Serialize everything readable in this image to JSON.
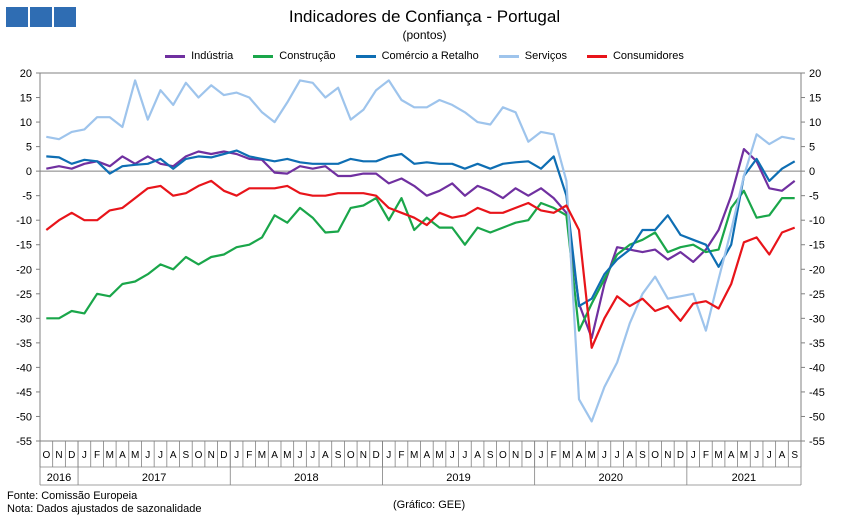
{
  "header": {
    "title": "Indicadores de Confiança - Portugal",
    "subtitle": "(pontos)"
  },
  "footer": {
    "source": "Fonte: Comissão Europeia",
    "note": "Nota: Dados ajustados de sazonalidade",
    "credit": "(Gráfico: GEE)"
  },
  "chart_data": {
    "type": "line",
    "title": "Indicadores de Confiança - Portugal",
    "ylabel": "(pontos)",
    "ylim": [
      -55,
      20
    ],
    "yticks": [
      20,
      15,
      10,
      5,
      0,
      -5,
      -10,
      -15,
      -20,
      -25,
      -30,
      -35,
      -40,
      -45,
      -50,
      -55
    ],
    "grid": false,
    "legend": "top",
    "secondary_y_axis": true,
    "month_labels": [
      "O",
      "N",
      "D",
      "J",
      "F",
      "M",
      "A",
      "M",
      "J",
      "J",
      "A",
      "S",
      "O",
      "N",
      "D",
      "J",
      "F",
      "M",
      "A",
      "M",
      "J",
      "J",
      "A",
      "S",
      "O",
      "N",
      "D",
      "J",
      "F",
      "M",
      "A",
      "M",
      "J",
      "J",
      "A",
      "S",
      "O",
      "N",
      "D",
      "J",
      "F",
      "M",
      "A",
      "M",
      "J",
      "J",
      "A",
      "S",
      "O",
      "N",
      "D",
      "J",
      "F",
      "M",
      "A",
      "M",
      "J",
      "J",
      "A",
      "S"
    ],
    "year_labels": [
      {
        "label": "2016",
        "start": 0,
        "end": 2
      },
      {
        "label": "2017",
        "start": 3,
        "end": 14
      },
      {
        "label": "2018",
        "start": 15,
        "end": 26
      },
      {
        "label": "2019",
        "start": 27,
        "end": 38
      },
      {
        "label": "2020",
        "start": 39,
        "end": 50
      },
      {
        "label": "2021",
        "start": 51,
        "end": 59
      }
    ],
    "series": [
      {
        "name": "Indústria",
        "color": "#7030a0",
        "values": [
          0.5,
          1,
          0.5,
          1.5,
          2,
          1,
          3,
          1.5,
          3,
          1.5,
          1,
          3,
          4,
          3.5,
          4,
          3.5,
          2.5,
          2.3,
          -0.3,
          -0.5,
          1,
          0.5,
          1,
          -1,
          -1,
          -0.5,
          -0.5,
          -2.5,
          -1.5,
          -3,
          -5,
          -4,
          -2.5,
          -5,
          -3,
          -4,
          -5.5,
          -3.5,
          -5,
          -3.5,
          -5.5,
          -8.5,
          -27,
          -34,
          -23,
          -15.5,
          -16,
          -16.5,
          -16,
          -18,
          -16.5,
          -18.5,
          -16,
          -12,
          -5,
          4.5,
          2,
          -3.5,
          -4,
          -2
        ]
      },
      {
        "name": "Construção",
        "color": "#1aa64a",
        "values": [
          -30,
          -30,
          -28.5,
          -29,
          -25,
          -25.5,
          -23,
          -22.5,
          -21,
          -19,
          -20,
          -17.5,
          -19,
          -17.5,
          -17,
          -15.5,
          -15,
          -13.5,
          -9,
          -10.5,
          -7.5,
          -9.5,
          -12.5,
          -12.3,
          -7.5,
          -7,
          -5.5,
          -10,
          -5.5,
          -12,
          -9.5,
          -11.5,
          -11.5,
          -15,
          -11.5,
          -12.5,
          -11.5,
          -10.5,
          -10,
          -6.5,
          -7.5,
          -9,
          -32.5,
          -27,
          -22,
          -17,
          -15,
          -14,
          -12.5,
          -16.5,
          -15.5,
          -15,
          -16.5,
          -16,
          -7.5,
          -4,
          -9.5,
          -9,
          -5.5,
          -5.5
        ]
      },
      {
        "name": "Comércio a Retalho",
        "color": "#0e6eb3",
        "values": [
          3,
          2.8,
          1.5,
          2.3,
          2,
          -0.5,
          1,
          1.3,
          1.5,
          2.5,
          0.5,
          2.5,
          3,
          2.8,
          3.5,
          4.2,
          3,
          2.5,
          2,
          2.5,
          1.8,
          1.5,
          1.5,
          1.5,
          2.5,
          2,
          2,
          3,
          3.5,
          1.5,
          1.8,
          1.5,
          1.5,
          0.5,
          1.5,
          0.5,
          1.5,
          1.8,
          2,
          0.5,
          3,
          -5,
          -27.5,
          -26,
          -21,
          -18,
          -16,
          -12,
          -12,
          -9,
          -13,
          -14,
          -15,
          -19.5,
          -15,
          -1,
          2.5,
          -2,
          0.5,
          2
        ]
      },
      {
        "name": "Serviços",
        "color": "#9ec4ec",
        "values": [
          7,
          6.5,
          8,
          8.5,
          11,
          11,
          9,
          18.5,
          10.5,
          16.5,
          13.5,
          18,
          15,
          17.5,
          15.5,
          16,
          15,
          12,
          10,
          14,
          18.5,
          18,
          15,
          17,
          10.5,
          12.5,
          16.5,
          18.5,
          14.5,
          13,
          13,
          14.5,
          13.5,
          12,
          10,
          9.5,
          13,
          12,
          6,
          8,
          7.5,
          -2,
          -46.5,
          -51,
          -44,
          -39,
          -31,
          -25,
          -21.5,
          -26,
          -25.5,
          -25,
          -32.5,
          -22,
          -12,
          -1,
          7.5,
          5.5,
          7,
          6.5
        ]
      },
      {
        "name": "Consumidores",
        "color": "#e8141a",
        "values": [
          -12,
          -10,
          -8.5,
          -10,
          -10,
          -8,
          -7.5,
          -5.5,
          -3.5,
          -3,
          -5,
          -4.5,
          -3,
          -2,
          -4,
          -5,
          -3.5,
          -3.5,
          -3.5,
          -3,
          -4.5,
          -5,
          -5,
          -4.5,
          -4.5,
          -4.5,
          -5,
          -7.5,
          -8.5,
          -9.5,
          -11,
          -8.5,
          -9.5,
          -9,
          -7.5,
          -8.5,
          -8.5,
          -7.5,
          -6.5,
          -8,
          -8.5,
          -7,
          -12,
          -36,
          -30,
          -25.5,
          -27.5,
          -26,
          -28.5,
          -27.5,
          -30.5,
          -27,
          -26.5,
          -28,
          -23,
          -14.5,
          -13.5,
          -17,
          -12.5,
          -11.5
        ]
      }
    ]
  }
}
